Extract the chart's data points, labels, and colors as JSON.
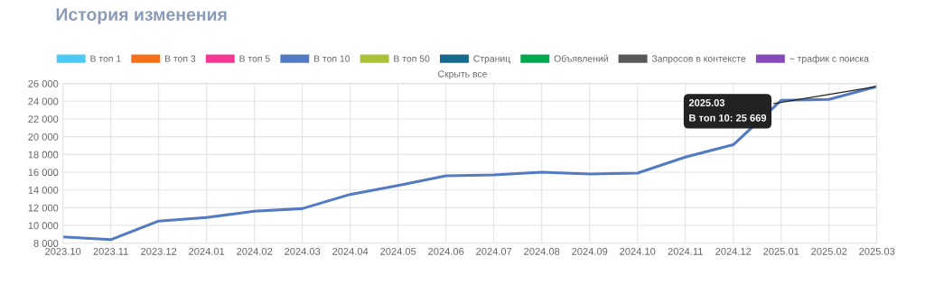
{
  "chart_data": {
    "type": "line",
    "title": "История изменения",
    "categories": [
      "2023.10",
      "2023.11",
      "2023.12",
      "2024.01",
      "2024.02",
      "2024.03",
      "2024.04",
      "2024.05",
      "2024.06",
      "2024.07",
      "2024.08",
      "2024.09",
      "2024.10",
      "2024.11",
      "2024.12",
      "2025.01",
      "2025.02",
      "2025.03"
    ],
    "series": [
      {
        "name": "В топ 1",
        "color": "#4dc9f6",
        "values": [
          null,
          null,
          null,
          null,
          null,
          null,
          null,
          null,
          null,
          null,
          null,
          null,
          null,
          null,
          null,
          null,
          null,
          null
        ]
      },
      {
        "name": "В топ 3",
        "color": "#f67019",
        "values": [
          null,
          null,
          null,
          null,
          null,
          null,
          null,
          null,
          null,
          null,
          null,
          null,
          null,
          null,
          null,
          null,
          null,
          null
        ]
      },
      {
        "name": "В топ 5",
        "color": "#f53794",
        "values": [
          null,
          null,
          null,
          null,
          null,
          null,
          null,
          null,
          null,
          null,
          null,
          null,
          null,
          null,
          null,
          null,
          null,
          null
        ]
      },
      {
        "name": "В топ 10",
        "color": "#537bc4",
        "values": [
          8700,
          8400,
          10500,
          10900,
          11600,
          11900,
          13500,
          14500,
          15600,
          15700,
          16000,
          15800,
          15900,
          17700,
          19100,
          24100,
          24200,
          25669
        ]
      },
      {
        "name": "В топ 50",
        "color": "#acc236",
        "values": [
          null,
          null,
          null,
          null,
          null,
          null,
          null,
          null,
          null,
          null,
          null,
          null,
          null,
          null,
          null,
          null,
          null,
          null
        ]
      },
      {
        "name": "Страниц",
        "color": "#166a8f",
        "values": [
          null,
          null,
          null,
          null,
          null,
          null,
          null,
          null,
          null,
          null,
          null,
          null,
          null,
          null,
          null,
          null,
          null,
          null
        ]
      },
      {
        "name": "Объявлений",
        "color": "#00a950",
        "values": [
          null,
          null,
          null,
          null,
          null,
          null,
          null,
          null,
          null,
          null,
          null,
          null,
          null,
          null,
          null,
          null,
          null,
          null
        ]
      },
      {
        "name": "Запросов в контексте",
        "color": "#58595b",
        "values": [
          null,
          null,
          null,
          null,
          null,
          null,
          null,
          null,
          null,
          null,
          null,
          null,
          null,
          null,
          null,
          null,
          null,
          null
        ]
      },
      {
        "name": "~ трафик с поиска",
        "color": "#8549ba",
        "values": [
          null,
          null,
          null,
          null,
          null,
          null,
          null,
          null,
          null,
          null,
          null,
          null,
          null,
          null,
          null,
          null,
          null,
          null
        ]
      }
    ],
    "ylim": [
      8000,
      26000
    ],
    "yticks": [
      {
        "value": 8000,
        "label": "8 000"
      },
      {
        "value": 10000,
        "label": "10 000"
      },
      {
        "value": 12000,
        "label": "12 000"
      },
      {
        "value": 14000,
        "label": "14 000"
      },
      {
        "value": 16000,
        "label": "16 000"
      },
      {
        "value": 18000,
        "label": "18 000"
      },
      {
        "value": 20000,
        "label": "20 000"
      },
      {
        "value": 22000,
        "label": "22 000"
      },
      {
        "value": 24000,
        "label": "24 000"
      },
      {
        "value": 26000,
        "label": "26 000"
      }
    ],
    "annotations": [
      {
        "text": "2025.03\nВ топ 10: 25 669",
        "x": "2025.03",
        "y": 25669
      },
      "Скрыть все"
    ],
    "grid": true,
    "legend": "top",
    "marker": "none",
    "line_style": "solid"
  }
}
